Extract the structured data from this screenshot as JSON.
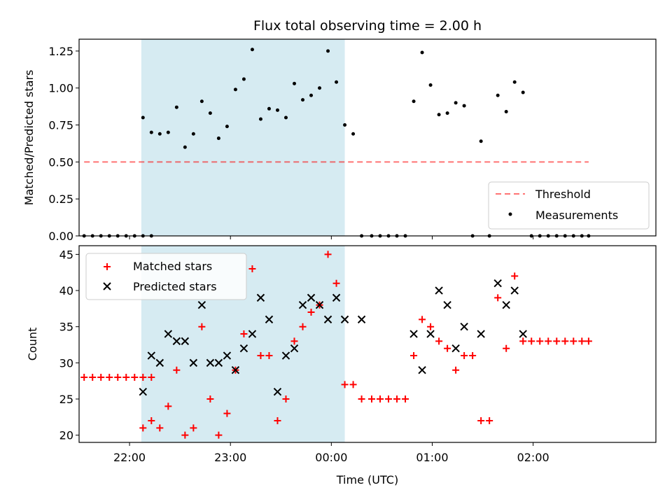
{
  "title": "Flux total observing time = 2.00 h",
  "colors": {
    "shade": "#add8e6",
    "threshold": "#ff0000",
    "matched": "#ff0000",
    "predicted": "#000000",
    "measurement": "#000000"
  },
  "chart_data": [
    {
      "type": "scatter",
      "title": "Flux total observing time = 2.00 h",
      "xlabel": "",
      "ylabel": "Matched/Predicted stars",
      "xlim": [
        "21:30",
        "03:13"
      ],
      "ylim": [
        0,
        1.33
      ],
      "y_ticks": [
        "0.00",
        "0.25",
        "0.50",
        "0.75",
        "1.00",
        "1.25"
      ],
      "highlight_span": [
        "22:07",
        "00:08"
      ],
      "legend": {
        "position": "lower right",
        "entries": [
          "Threshold",
          "Measurements"
        ]
      },
      "series": [
        {
          "name": "Threshold",
          "style": "dashed-line",
          "x": [
            "21:33",
            "02:33"
          ],
          "y": [
            0.5,
            0.5
          ]
        },
        {
          "name": "Measurements",
          "style": "dot",
          "x": [
            "21:33",
            "21:38",
            "21:43",
            "21:48",
            "21:53",
            "21:58",
            "22:03",
            "22:08",
            "22:13",
            "22:08",
            "22:13",
            "22:18",
            "22:23",
            "22:28",
            "22:33",
            "22:38",
            "22:43",
            "22:48",
            "22:53",
            "22:58",
            "23:03",
            "23:08",
            "23:13",
            "23:18",
            "23:23",
            "23:28",
            "23:33",
            "23:38",
            "23:43",
            "23:48",
            "23:53",
            "23:58",
            "00:03",
            "00:08",
            "00:13",
            "00:18",
            "00:24",
            "00:29",
            "00:34",
            "00:39",
            "00:44",
            "00:49",
            "00:54",
            "00:59",
            "01:04",
            "01:09",
            "01:14",
            "01:19",
            "01:24",
            "01:29",
            "01:34",
            "01:39",
            "01:44",
            "01:49",
            "01:54",
            "01:59",
            "02:04",
            "02:09",
            "02:14",
            "02:19",
            "02:24",
            "02:29",
            "02:33"
          ],
          "y": [
            0,
            0,
            0,
            0,
            0,
            0,
            0,
            0,
            0,
            0.8,
            0.7,
            0.69,
            0.7,
            0.87,
            0.6,
            0.69,
            0.91,
            0.83,
            0.66,
            0.74,
            0.99,
            1.06,
            1.26,
            0.79,
            0.86,
            0.85,
            0.8,
            1.03,
            0.92,
            0.95,
            1.0,
            1.25,
            1.04,
            0.75,
            0.69,
            0,
            0,
            0,
            0,
            0,
            0,
            0.91,
            1.24,
            1.02,
            0.82,
            0.83,
            0.9,
            0.88,
            0,
            0.64,
            0,
            0.95,
            0.84,
            1.04,
            0.97,
            0,
            0,
            0,
            0,
            0,
            0,
            0,
            0
          ]
        }
      ]
    },
    {
      "type": "scatter",
      "title": "",
      "xlabel": "Time (UTC)",
      "ylabel": "Count",
      "xlim": [
        "21:30",
        "03:13"
      ],
      "ylim": [
        19,
        46.2
      ],
      "y_ticks": [
        "20",
        "25",
        "30",
        "35",
        "40",
        "45"
      ],
      "x_ticks": [
        "22:00",
        "23:00",
        "00:00",
        "01:00",
        "02:00"
      ],
      "highlight_span": [
        "22:07",
        "00:08"
      ],
      "legend": {
        "position": "upper left",
        "entries": [
          "Matched stars",
          "Predicted stars"
        ]
      },
      "series": [
        {
          "name": "Matched stars",
          "marker": "plus",
          "x": [
            "21:33",
            "21:38",
            "21:43",
            "21:48",
            "21:53",
            "21:58",
            "22:03",
            "22:08",
            "22:13",
            "22:08",
            "22:13",
            "22:18",
            "22:23",
            "22:28",
            "22:33",
            "22:38",
            "22:43",
            "22:48",
            "22:53",
            "22:58",
            "23:03",
            "23:08",
            "23:13",
            "23:18",
            "23:23",
            "23:28",
            "23:33",
            "23:38",
            "23:43",
            "23:48",
            "23:53",
            "23:58",
            "00:03",
            "00:08",
            "00:13",
            "00:18",
            "00:24",
            "00:29",
            "00:34",
            "00:39",
            "00:44",
            "00:49",
            "00:54",
            "00:59",
            "01:04",
            "01:09",
            "01:14",
            "01:19",
            "01:24",
            "01:29",
            "01:34",
            "01:39",
            "01:44",
            "01:49",
            "01:54",
            "01:59",
            "02:04",
            "02:09",
            "02:14",
            "02:19",
            "02:24",
            "02:29",
            "02:33"
          ],
          "y": [
            28,
            28,
            28,
            28,
            28,
            28,
            28,
            28,
            28,
            21,
            22,
            21,
            24,
            29,
            20,
            21,
            35,
            25,
            20,
            23,
            29,
            34,
            43,
            31,
            31,
            22,
            25,
            33,
            35,
            37,
            38,
            45,
            41,
            27,
            27,
            25,
            25,
            25,
            25,
            25,
            25,
            31,
            36,
            35,
            33,
            32,
            29,
            31,
            31,
            22,
            22,
            39,
            32,
            42,
            33,
            33,
            33,
            33,
            33,
            33,
            33,
            33,
            33
          ]
        },
        {
          "name": "Predicted stars",
          "marker": "x",
          "x": [
            "22:08",
            "22:13",
            "22:18",
            "22:23",
            "22:28",
            "22:33",
            "22:38",
            "22:43",
            "22:48",
            "22:53",
            "22:58",
            "23:03",
            "23:08",
            "23:13",
            "23:18",
            "23:23",
            "23:28",
            "23:33",
            "23:38",
            "23:43",
            "23:48",
            "23:53",
            "23:58",
            "00:03",
            "00:08",
            "00:18",
            "00:49",
            "00:54",
            "00:59",
            "01:04",
            "01:09",
            "01:14",
            "01:19",
            "01:29",
            "01:39",
            "01:44",
            "01:49",
            "01:54"
          ],
          "y": [
            26,
            31,
            30,
            34,
            33,
            33,
            30,
            38,
            30,
            30,
            31,
            29,
            32,
            34,
            39,
            36,
            26,
            31,
            32,
            38,
            39,
            38,
            36,
            39,
            36,
            36,
            34,
            29,
            34,
            40,
            38,
            32,
            35,
            34,
            41,
            38,
            40,
            34
          ]
        }
      ]
    }
  ]
}
